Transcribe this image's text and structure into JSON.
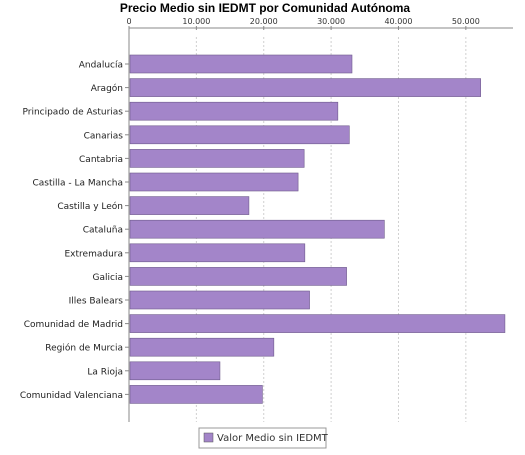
{
  "chart_data": {
    "type": "bar",
    "orientation": "horizontal",
    "title": "Precio Medio sin IEDMT por Comunidad Autónoma",
    "xlabel": "",
    "ylabel": "",
    "xlim": [
      0,
      57000
    ],
    "x_ticks": [
      0,
      10000,
      20000,
      30000,
      40000,
      50000
    ],
    "x_tick_labels": [
      "0",
      "10.000",
      "20.000",
      "30.000",
      "40.000",
      "50.000"
    ],
    "x_axis_position": "top",
    "grid": true,
    "legend_position": "bottom-center",
    "categories": [
      "Andalucía",
      "Aragón",
      "Principado de Asturias",
      "Canarias",
      "Cantabria",
      "Castilla - La Mancha",
      "Castilla y León",
      "Cataluña",
      "Extremadura",
      "Galicia",
      "Illes Balears",
      "Comunidad de Madrid",
      "Región de Murcia",
      "La Rioja",
      "Comunidad Valenciana"
    ],
    "series": [
      {
        "name": "Valor Medio sin IEDMT",
        "color": "#a385c9",
        "values": [
          33100,
          52200,
          31000,
          32700,
          26000,
          25100,
          17800,
          37900,
          26100,
          32300,
          26800,
          55800,
          21500,
          13500,
          19800
        ]
      }
    ]
  }
}
